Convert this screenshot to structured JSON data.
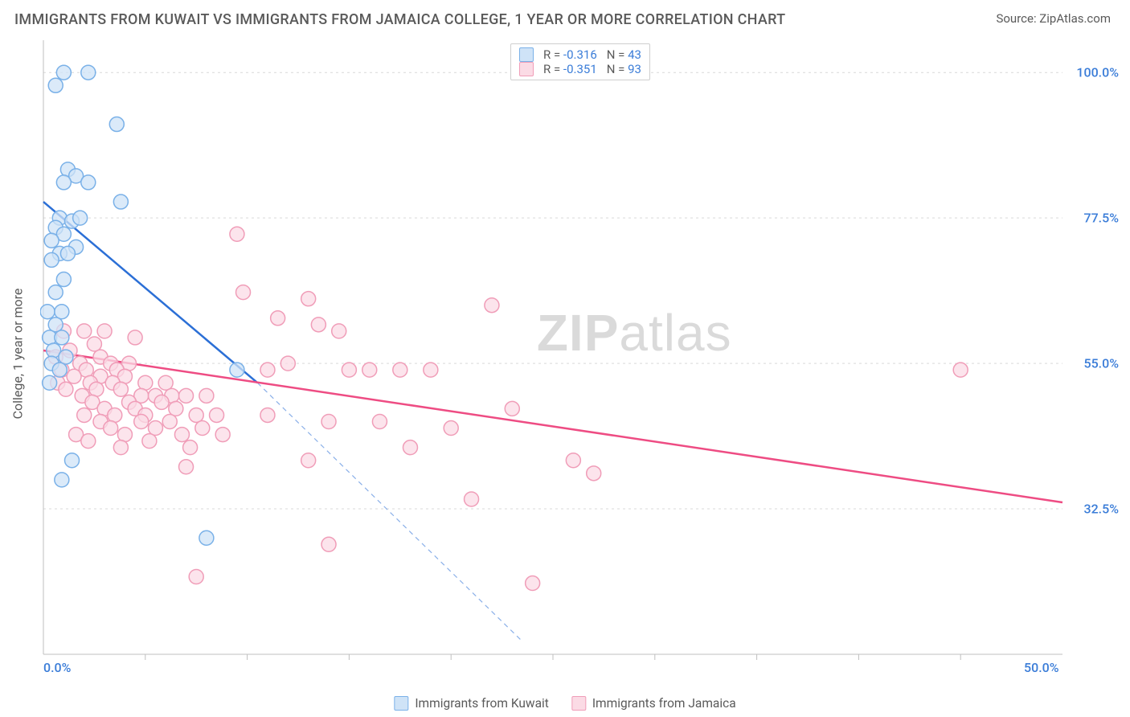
{
  "header": {
    "title": "IMMIGRANTS FROM KUWAIT VS IMMIGRANTS FROM JAMAICA COLLEGE, 1 YEAR OR MORE CORRELATION CHART",
    "source": "Source: ZipAtlas.com"
  },
  "chart": {
    "type": "scatter",
    "ylabel": "College, 1 year or more",
    "watermark": {
      "bold": "ZIP",
      "rest": "atlas"
    },
    "xlim": [
      0,
      50
    ],
    "ylim": [
      10,
      105
    ],
    "xticks": [
      {
        "v": 0,
        "label": "0.0%"
      },
      {
        "v": 50,
        "label": "50.0%"
      }
    ],
    "xtick_minor": [
      5,
      10,
      15,
      20,
      25,
      30,
      35,
      40,
      45
    ],
    "yticks": [
      {
        "v": 32.5,
        "label": "32.5%"
      },
      {
        "v": 55.0,
        "label": "55.0%"
      },
      {
        "v": 77.5,
        "label": "77.5%"
      },
      {
        "v": 100.0,
        "label": "100.0%"
      }
    ],
    "axis_color": "#bfbfbf",
    "grid_color": "#d9d9d9",
    "tick_label_color": "#3b7dd8",
    "background": "#ffffff",
    "label_fontsize": 16,
    "marker_radius": 9,
    "marker_stroke_width": 1.5,
    "series": [
      {
        "name": "Immigrants from Kuwait",
        "color_fill": "#cfe3f7",
        "color_stroke": "#7ab1e8",
        "line_color": "#2b6fd6",
        "R": "-0.316",
        "N": "43",
        "trend": {
          "x1": 0,
          "y1": 80,
          "x2": 10.5,
          "y2": 52,
          "dash_after": true,
          "x3": 23.5,
          "y3": 12
        },
        "points": [
          [
            1,
            100
          ],
          [
            2.2,
            100
          ],
          [
            0.6,
            98
          ],
          [
            3.6,
            92
          ],
          [
            1.2,
            85
          ],
          [
            1.6,
            84
          ],
          [
            1.0,
            83
          ],
          [
            2.2,
            83
          ],
          [
            3.8,
            80
          ],
          [
            0.8,
            77.5
          ],
          [
            1.4,
            77
          ],
          [
            1.8,
            77.5
          ],
          [
            0.6,
            76
          ],
          [
            1.0,
            75
          ],
          [
            0.4,
            74
          ],
          [
            1.6,
            73
          ],
          [
            0.8,
            72
          ],
          [
            1.2,
            72
          ],
          [
            0.4,
            71
          ],
          [
            1.0,
            68
          ],
          [
            0.6,
            66
          ],
          [
            0.2,
            63
          ],
          [
            0.9,
            63
          ],
          [
            0.6,
            61
          ],
          [
            0.3,
            59
          ],
          [
            0.9,
            59
          ],
          [
            0.5,
            57
          ],
          [
            1.1,
            56
          ],
          [
            0.4,
            55
          ],
          [
            0.8,
            54
          ],
          [
            0.3,
            52
          ],
          [
            9.5,
            54
          ],
          [
            1.4,
            40
          ],
          [
            0.9,
            37
          ],
          [
            8.0,
            28
          ]
        ]
      },
      {
        "name": "Immigrants from Jamaica",
        "color_fill": "#fbdbe5",
        "color_stroke": "#f09db8",
        "line_color": "#ee4c83",
        "R": "-0.351",
        "N": "93",
        "trend": {
          "x1": 0,
          "y1": 57,
          "x2": 50,
          "y2": 33.5
        },
        "points": [
          [
            9.5,
            75
          ],
          [
            9.8,
            66
          ],
          [
            13,
            65
          ],
          [
            11.5,
            62
          ],
          [
            13.5,
            61
          ],
          [
            14.5,
            60
          ],
          [
            22,
            64
          ],
          [
            1,
            60
          ],
          [
            2,
            60
          ],
          [
            3,
            60
          ],
          [
            4.5,
            59
          ],
          [
            2.5,
            58
          ],
          [
            1.3,
            57
          ],
          [
            2.8,
            56
          ],
          [
            0.6,
            56
          ],
          [
            3.3,
            55
          ],
          [
            1.8,
            55
          ],
          [
            4.2,
            55
          ],
          [
            0.9,
            54
          ],
          [
            2.1,
            54
          ],
          [
            3.6,
            54
          ],
          [
            1.5,
            53
          ],
          [
            2.8,
            53
          ],
          [
            4.0,
            53
          ],
          [
            0.7,
            52
          ],
          [
            2.3,
            52
          ],
          [
            3.4,
            52
          ],
          [
            5.0,
            52
          ],
          [
            6.0,
            52
          ],
          [
            1.1,
            51
          ],
          [
            2.6,
            51
          ],
          [
            3.8,
            51
          ],
          [
            4.8,
            50
          ],
          [
            6.3,
            50
          ],
          [
            1.9,
            50
          ],
          [
            5.5,
            50
          ],
          [
            7.0,
            50
          ],
          [
            8.0,
            50
          ],
          [
            2.4,
            49
          ],
          [
            4.2,
            49
          ],
          [
            5.8,
            49
          ],
          [
            3.0,
            48
          ],
          [
            4.5,
            48
          ],
          [
            6.5,
            48
          ],
          [
            2.0,
            47
          ],
          [
            3.5,
            47
          ],
          [
            5.0,
            47
          ],
          [
            7.5,
            47
          ],
          [
            8.5,
            47
          ],
          [
            2.8,
            46
          ],
          [
            4.8,
            46
          ],
          [
            6.2,
            46
          ],
          [
            3.3,
            45
          ],
          [
            5.5,
            45
          ],
          [
            7.8,
            45
          ],
          [
            1.6,
            44
          ],
          [
            4.0,
            44
          ],
          [
            6.8,
            44
          ],
          [
            8.8,
            44
          ],
          [
            2.2,
            43
          ],
          [
            5.2,
            43
          ],
          [
            3.8,
            42
          ],
          [
            7.2,
            42
          ],
          [
            11,
            54
          ],
          [
            12,
            55
          ],
          [
            15,
            54
          ],
          [
            16,
            54
          ],
          [
            17.5,
            54
          ],
          [
            19,
            54
          ],
          [
            14,
            46
          ],
          [
            16.5,
            46
          ],
          [
            18,
            42
          ],
          [
            20,
            45
          ],
          [
            21,
            34
          ],
          [
            23,
            48
          ],
          [
            11,
            47
          ],
          [
            13,
            40
          ],
          [
            26,
            40
          ],
          [
            27,
            38
          ],
          [
            14,
            27
          ],
          [
            7.5,
            22
          ],
          [
            7.0,
            39
          ],
          [
            24,
            21
          ],
          [
            45,
            54
          ]
        ]
      }
    ],
    "legend_top": {
      "border": "#cfcfcf",
      "rows": [
        {
          "fill": "#cfe3f7",
          "stroke": "#7ab1e8",
          "R_label": "R =",
          "R": "-0.316",
          "N_label": "N =",
          "N": "43"
        },
        {
          "fill": "#fbdbe5",
          "stroke": "#f09db8",
          "R_label": "R =",
          "R": "-0.351",
          "N_label": "N =",
          "N": "93"
        }
      ]
    },
    "legend_bottom": {
      "items": [
        {
          "fill": "#cfe3f7",
          "stroke": "#7ab1e8",
          "label": "Immigrants from Kuwait"
        },
        {
          "fill": "#fbdbe5",
          "stroke": "#f09db8",
          "label": "Immigrants from Jamaica"
        }
      ]
    }
  }
}
